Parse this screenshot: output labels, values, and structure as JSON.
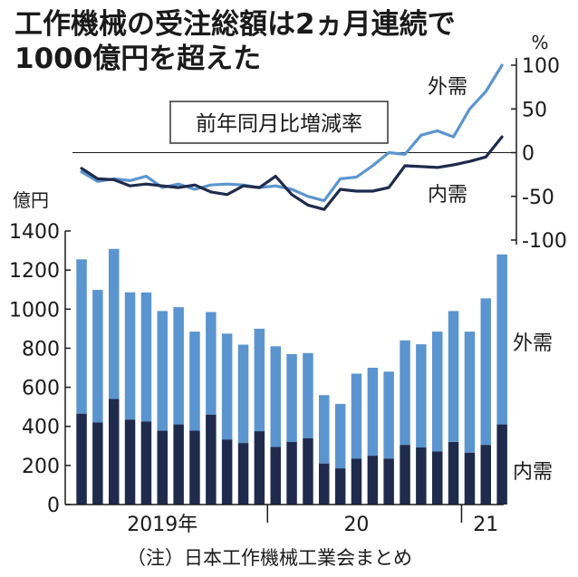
{
  "headline": {
    "line1": "工作機械の受注総額は2ヵ月連続で",
    "line2": "1000億円を超えた"
  },
  "note": "（注）日本工作機械工業会まとめ",
  "colors": {
    "foreign": "#5b95cf",
    "domestic": "#1f2b4d",
    "axis": "#1a1a1a",
    "box": "#333333"
  },
  "chart_data": [
    {
      "type": "line",
      "title": "前年同月比増減率",
      "ylabel": "%",
      "ylim": [
        -100,
        100
      ],
      "yticks": [
        "100",
        "50",
        "0",
        "-50",
        "-100"
      ],
      "ytick_values": [
        100,
        50,
        0,
        -50,
        -100
      ],
      "x": [
        "2019-01",
        "2019-02",
        "2019-03",
        "2019-04",
        "2019-05",
        "2019-06",
        "2019-07",
        "2019-08",
        "2019-09",
        "2019-10",
        "2019-11",
        "2019-12",
        "2020-01",
        "2020-02",
        "2020-03",
        "2020-04",
        "2020-05",
        "2020-06",
        "2020-07",
        "2020-08",
        "2020-09",
        "2020-10",
        "2020-11",
        "2020-12",
        "2021-01",
        "2021-02",
        "2021-03"
      ],
      "series": [
        {
          "name": "外需",
          "values": [
            -22,
            -33,
            -30,
            -32,
            -27,
            -40,
            -36,
            -42,
            -37,
            -36,
            -37,
            -40,
            -38,
            -42,
            -50,
            -55,
            -30,
            -28,
            -15,
            0,
            -2,
            20,
            25,
            18,
            50,
            70,
            100
          ]
        },
        {
          "name": "内需",
          "values": [
            -18,
            -30,
            -31,
            -38,
            -36,
            -38,
            -40,
            -37,
            -45,
            -48,
            -38,
            -40,
            -27,
            -48,
            -60,
            -65,
            -42,
            -44,
            -44,
            -40,
            -15,
            -16,
            -17,
            -14,
            -10,
            -5,
            18
          ]
        }
      ]
    },
    {
      "type": "bar",
      "stacked": true,
      "ylabel": "億円",
      "ylim": [
        0,
        1400
      ],
      "yticks": [
        "1400",
        "1200",
        "1000",
        "800",
        "600",
        "400",
        "200",
        "0"
      ],
      "ytick_values": [
        1400,
        1200,
        1000,
        800,
        600,
        400,
        200,
        0
      ],
      "x_labels": [
        {
          "label": "2019年",
          "index": 5
        },
        {
          "label": "20",
          "index": 17
        },
        {
          "label": "21",
          "index": 25
        }
      ],
      "x_year_dividers": [
        11.5,
        23.5
      ],
      "categories": [
        "2019-01",
        "2019-02",
        "2019-03",
        "2019-04",
        "2019-05",
        "2019-06",
        "2019-07",
        "2019-08",
        "2019-09",
        "2019-10",
        "2019-11",
        "2019-12",
        "2020-01",
        "2020-02",
        "2020-03",
        "2020-04",
        "2020-05",
        "2020-06",
        "2020-07",
        "2020-08",
        "2020-09",
        "2020-10",
        "2020-11",
        "2020-12",
        "2021-01",
        "2021-02",
        "2021-03"
      ],
      "totals": [
        1255,
        1098,
        1308,
        1086,
        1085,
        990,
        1010,
        885,
        985,
        875,
        818,
        900,
        810,
        770,
        775,
        560,
        515,
        670,
        700,
        680,
        840,
        820,
        885,
        990,
        885,
        1055,
        1280
      ],
      "series": [
        {
          "name": "内需",
          "values": [
            465,
            420,
            540,
            435,
            425,
            378,
            410,
            378,
            460,
            333,
            315,
            375,
            295,
            320,
            340,
            210,
            185,
            235,
            250,
            235,
            305,
            292,
            272,
            320,
            265,
            305,
            410
          ]
        },
        {
          "name": "外需",
          "values": [
            790,
            678,
            768,
            651,
            660,
            612,
            600,
            507,
            525,
            542,
            503,
            525,
            515,
            450,
            435,
            350,
            330,
            435,
            450,
            445,
            535,
            528,
            613,
            670,
            620,
            750,
            870
          ]
        }
      ]
    }
  ]
}
